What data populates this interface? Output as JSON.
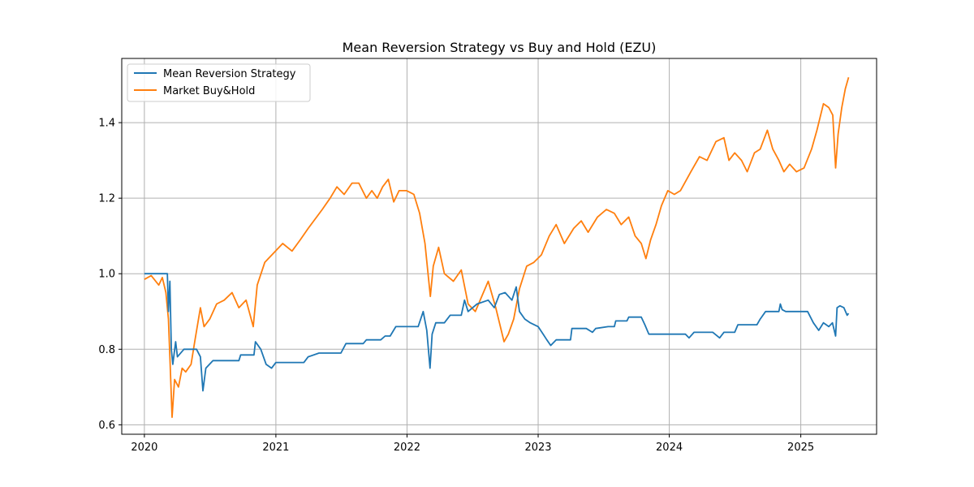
{
  "chart_data": {
    "type": "line",
    "title": "Mean Reversion Strategy vs Buy and Hold (EZU)",
    "xlabel": "",
    "ylabel": "",
    "xlim": [
      "2019-10-30",
      "2025-07-31"
    ],
    "ylim": [
      0.575,
      1.57
    ],
    "x_ticks": [
      "2020",
      "2021",
      "2022",
      "2023",
      "2024",
      "2025"
    ],
    "y_ticks": [
      "0.6",
      "0.8",
      "1.0",
      "1.2",
      "1.4"
    ],
    "grid": true,
    "legend_position": "top-left",
    "series": [
      {
        "name": "Mean Reversion Strategy",
        "color": "#1f77b4",
        "points": [
          [
            "2020-01-01",
            1.0
          ],
          [
            "2020-03-05",
            1.0
          ],
          [
            "2020-03-08",
            0.9
          ],
          [
            "2020-03-12",
            0.98
          ],
          [
            "2020-03-16",
            0.8
          ],
          [
            "2020-03-20",
            0.76
          ],
          [
            "2020-03-28",
            0.82
          ],
          [
            "2020-04-02",
            0.78
          ],
          [
            "2020-04-20",
            0.8
          ],
          [
            "2020-05-15",
            0.8
          ],
          [
            "2020-05-25",
            0.8
          ],
          [
            "2020-06-05",
            0.78
          ],
          [
            "2020-06-12",
            0.69
          ],
          [
            "2020-06-20",
            0.75
          ],
          [
            "2020-07-10",
            0.77
          ],
          [
            "2020-09-20",
            0.77
          ],
          [
            "2020-09-25",
            0.785
          ],
          [
            "2020-11-01",
            0.785
          ],
          [
            "2020-11-05",
            0.82
          ],
          [
            "2020-11-20",
            0.8
          ],
          [
            "2020-12-05",
            0.76
          ],
          [
            "2020-12-20",
            0.75
          ],
          [
            "2021-01-01",
            0.765
          ],
          [
            "2021-03-20",
            0.765
          ],
          [
            "2021-04-01",
            0.78
          ],
          [
            "2021-05-01",
            0.79
          ],
          [
            "2021-07-01",
            0.79
          ],
          [
            "2021-07-15",
            0.815
          ],
          [
            "2021-09-01",
            0.815
          ],
          [
            "2021-09-10",
            0.825
          ],
          [
            "2021-10-20",
            0.825
          ],
          [
            "2021-11-01",
            0.835
          ],
          [
            "2021-11-15",
            0.835
          ],
          [
            "2021-12-01",
            0.86
          ],
          [
            "2022-02-01",
            0.86
          ],
          [
            "2022-02-15",
            0.9
          ],
          [
            "2022-02-25",
            0.85
          ],
          [
            "2022-03-06",
            0.75
          ],
          [
            "2022-03-12",
            0.84
          ],
          [
            "2022-03-22",
            0.87
          ],
          [
            "2022-04-15",
            0.87
          ],
          [
            "2022-05-01",
            0.89
          ],
          [
            "2022-06-01",
            0.89
          ],
          [
            "2022-06-10",
            0.93
          ],
          [
            "2022-06-20",
            0.9
          ],
          [
            "2022-07-15",
            0.92
          ],
          [
            "2022-08-15",
            0.93
          ],
          [
            "2022-09-01",
            0.91
          ],
          [
            "2022-09-15",
            0.945
          ],
          [
            "2022-10-01",
            0.95
          ],
          [
            "2022-10-20",
            0.93
          ],
          [
            "2022-11-01",
            0.965
          ],
          [
            "2022-11-10",
            0.9
          ],
          [
            "2022-11-25",
            0.88
          ],
          [
            "2022-12-10",
            0.87
          ],
          [
            "2023-01-01",
            0.86
          ],
          [
            "2023-01-15",
            0.84
          ],
          [
            "2023-01-25",
            0.825
          ],
          [
            "2023-02-05",
            0.81
          ],
          [
            "2023-02-20",
            0.825
          ],
          [
            "2023-04-01",
            0.825
          ],
          [
            "2023-04-05",
            0.855
          ],
          [
            "2023-05-15",
            0.855
          ],
          [
            "2023-06-01",
            0.845
          ],
          [
            "2023-06-10",
            0.855
          ],
          [
            "2023-07-15",
            0.86
          ],
          [
            "2023-08-01",
            0.86
          ],
          [
            "2023-08-05",
            0.875
          ],
          [
            "2023-09-05",
            0.875
          ],
          [
            "2023-09-10",
            0.885
          ],
          [
            "2023-10-15",
            0.885
          ],
          [
            "2023-10-25",
            0.865
          ],
          [
            "2023-11-05",
            0.84
          ],
          [
            "2023-11-20",
            0.84
          ],
          [
            "2023-12-01",
            0.84
          ],
          [
            "2024-02-15",
            0.84
          ],
          [
            "2024-02-25",
            0.83
          ],
          [
            "2024-03-10",
            0.845
          ],
          [
            "2024-05-01",
            0.845
          ],
          [
            "2024-05-20",
            0.83
          ],
          [
            "2024-06-01",
            0.845
          ],
          [
            "2024-07-01",
            0.845
          ],
          [
            "2024-07-10",
            0.865
          ],
          [
            "2024-09-01",
            0.865
          ],
          [
            "2024-09-10",
            0.88
          ],
          [
            "2024-09-25",
            0.9
          ],
          [
            "2024-11-01",
            0.9
          ],
          [
            "2024-11-05",
            0.92
          ],
          [
            "2024-11-10",
            0.905
          ],
          [
            "2024-11-20",
            0.9
          ],
          [
            "2025-01-20",
            0.9
          ],
          [
            "2025-02-05",
            0.87
          ],
          [
            "2025-02-20",
            0.85
          ],
          [
            "2025-03-05",
            0.87
          ],
          [
            "2025-03-20",
            0.86
          ],
          [
            "2025-03-30",
            0.87
          ],
          [
            "2025-04-08",
            0.835
          ],
          [
            "2025-04-12",
            0.91
          ],
          [
            "2025-04-20",
            0.915
          ],
          [
            "2025-05-01",
            0.91
          ],
          [
            "2025-05-10",
            0.89
          ],
          [
            "2025-05-14",
            0.895
          ]
        ]
      },
      {
        "name": "Market Buy&Hold",
        "color": "#ff7f0e",
        "points": [
          [
            "2020-01-01",
            0.985
          ],
          [
            "2020-01-20",
            0.995
          ],
          [
            "2020-02-10",
            0.97
          ],
          [
            "2020-02-20",
            0.99
          ],
          [
            "2020-03-01",
            0.95
          ],
          [
            "2020-03-08",
            0.88
          ],
          [
            "2020-03-12",
            0.78
          ],
          [
            "2020-03-18",
            0.62
          ],
          [
            "2020-03-25",
            0.72
          ],
          [
            "2020-04-05",
            0.7
          ],
          [
            "2020-04-15",
            0.75
          ],
          [
            "2020-04-25",
            0.74
          ],
          [
            "2020-05-10",
            0.76
          ],
          [
            "2020-05-20",
            0.82
          ],
          [
            "2020-06-05",
            0.91
          ],
          [
            "2020-06-15",
            0.86
          ],
          [
            "2020-07-01",
            0.88
          ],
          [
            "2020-07-20",
            0.92
          ],
          [
            "2020-08-10",
            0.93
          ],
          [
            "2020-09-01",
            0.95
          ],
          [
            "2020-09-20",
            0.91
          ],
          [
            "2020-10-10",
            0.93
          ],
          [
            "2020-10-30",
            0.86
          ],
          [
            "2020-11-10",
            0.97
          ],
          [
            "2020-12-01",
            1.03
          ],
          [
            "2020-12-31",
            1.06
          ],
          [
            "2021-01-20",
            1.08
          ],
          [
            "2021-02-15",
            1.06
          ],
          [
            "2021-03-10",
            1.09
          ],
          [
            "2021-04-01",
            1.12
          ],
          [
            "2021-05-10",
            1.17
          ],
          [
            "2021-06-01",
            1.2
          ],
          [
            "2021-06-20",
            1.23
          ],
          [
            "2021-07-10",
            1.21
          ],
          [
            "2021-08-01",
            1.24
          ],
          [
            "2021-08-20",
            1.24
          ],
          [
            "2021-09-10",
            1.2
          ],
          [
            "2021-09-25",
            1.22
          ],
          [
            "2021-10-10",
            1.2
          ],
          [
            "2021-10-25",
            1.23
          ],
          [
            "2021-11-10",
            1.25
          ],
          [
            "2021-11-25",
            1.19
          ],
          [
            "2021-12-10",
            1.22
          ],
          [
            "2021-12-31",
            1.22
          ],
          [
            "2022-01-20",
            1.21
          ],
          [
            "2022-02-05",
            1.16
          ],
          [
            "2022-02-20",
            1.08
          ],
          [
            "2022-03-07",
            0.94
          ],
          [
            "2022-03-15",
            1.02
          ],
          [
            "2022-03-30",
            1.07
          ],
          [
            "2022-04-15",
            1.0
          ],
          [
            "2022-05-10",
            0.98
          ],
          [
            "2022-06-01",
            1.01
          ],
          [
            "2022-06-20",
            0.92
          ],
          [
            "2022-07-10",
            0.9
          ],
          [
            "2022-08-15",
            0.98
          ],
          [
            "2022-09-05",
            0.91
          ],
          [
            "2022-09-28",
            0.82
          ],
          [
            "2022-10-10",
            0.84
          ],
          [
            "2022-10-25",
            0.88
          ],
          [
            "2022-11-10",
            0.96
          ],
          [
            "2022-11-30",
            1.02
          ],
          [
            "2022-12-20",
            1.03
          ],
          [
            "2023-01-10",
            1.05
          ],
          [
            "2023-02-01",
            1.1
          ],
          [
            "2023-02-20",
            1.13
          ],
          [
            "2023-03-15",
            1.08
          ],
          [
            "2023-04-10",
            1.12
          ],
          [
            "2023-05-01",
            1.14
          ],
          [
            "2023-05-20",
            1.11
          ],
          [
            "2023-06-15",
            1.15
          ],
          [
            "2023-07-10",
            1.17
          ],
          [
            "2023-08-01",
            1.16
          ],
          [
            "2023-08-20",
            1.13
          ],
          [
            "2023-09-10",
            1.15
          ],
          [
            "2023-09-28",
            1.1
          ],
          [
            "2023-10-15",
            1.08
          ],
          [
            "2023-10-28",
            1.04
          ],
          [
            "2023-11-10",
            1.09
          ],
          [
            "2023-11-25",
            1.13
          ],
          [
            "2023-12-10",
            1.18
          ],
          [
            "2023-12-28",
            1.22
          ],
          [
            "2024-01-15",
            1.21
          ],
          [
            "2024-02-01",
            1.22
          ],
          [
            "2024-03-01",
            1.27
          ],
          [
            "2024-03-25",
            1.31
          ],
          [
            "2024-04-15",
            1.3
          ],
          [
            "2024-05-10",
            1.35
          ],
          [
            "2024-06-01",
            1.36
          ],
          [
            "2024-06-15",
            1.3
          ],
          [
            "2024-07-01",
            1.32
          ],
          [
            "2024-07-20",
            1.3
          ],
          [
            "2024-08-05",
            1.27
          ],
          [
            "2024-08-25",
            1.32
          ],
          [
            "2024-09-10",
            1.33
          ],
          [
            "2024-09-30",
            1.38
          ],
          [
            "2024-10-15",
            1.33
          ],
          [
            "2024-11-01",
            1.3
          ],
          [
            "2024-11-15",
            1.27
          ],
          [
            "2024-12-01",
            1.29
          ],
          [
            "2024-12-20",
            1.27
          ],
          [
            "2025-01-10",
            1.28
          ],
          [
            "2025-01-31",
            1.33
          ],
          [
            "2025-02-15",
            1.38
          ],
          [
            "2025-03-05",
            1.45
          ],
          [
            "2025-03-20",
            1.44
          ],
          [
            "2025-03-31",
            1.42
          ],
          [
            "2025-04-08",
            1.28
          ],
          [
            "2025-04-15",
            1.37
          ],
          [
            "2025-04-25",
            1.44
          ],
          [
            "2025-05-05",
            1.49
          ],
          [
            "2025-05-14",
            1.52
          ]
        ]
      }
    ]
  }
}
